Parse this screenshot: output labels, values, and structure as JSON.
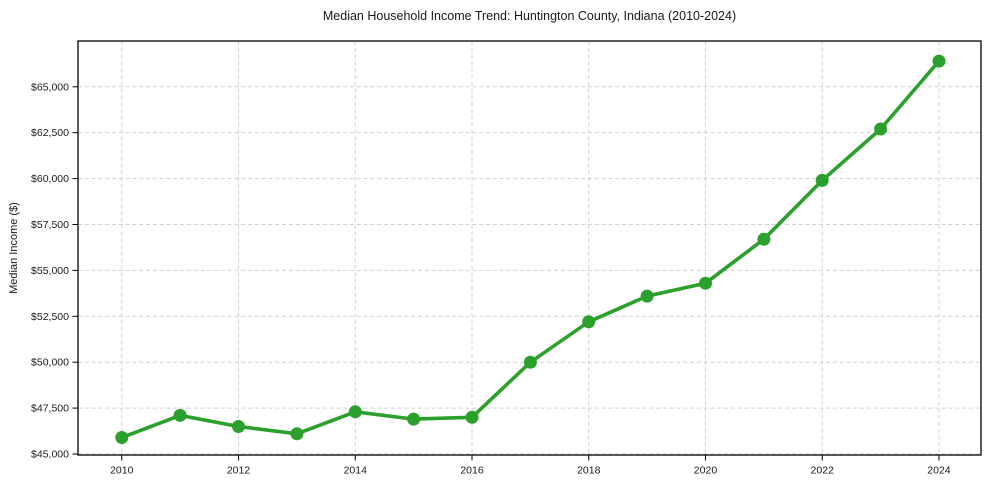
{
  "chart_data": {
    "type": "line",
    "title": "Median Household Income Trend: Huntington County, Indiana (2010-2024)",
    "xlabel": "",
    "ylabel": "Median Income ($)",
    "x": [
      2010,
      2011,
      2012,
      2013,
      2014,
      2015,
      2016,
      2017,
      2018,
      2019,
      2020,
      2021,
      2022,
      2023,
      2024
    ],
    "series": [
      {
        "name": "Median Household Income",
        "values": [
          45900,
          47100,
          46500,
          46100,
          47300,
          46900,
          47000,
          50000,
          52200,
          53600,
          54300,
          56700,
          59900,
          62700,
          66400
        ]
      }
    ],
    "xticks": [
      2010,
      2012,
      2014,
      2016,
      2018,
      2020,
      2022,
      2024
    ],
    "xtick_labels": [
      "2010",
      "2012",
      "2014",
      "2016",
      "2018",
      "2020",
      "2022",
      "2024"
    ],
    "yticks": [
      45000,
      47500,
      50000,
      52500,
      55000,
      57500,
      60000,
      62500,
      65000
    ],
    "ytick_labels": [
      "$45,000",
      "$47,500",
      "$50,000",
      "$52,500",
      "$55,000",
      "$57,500",
      "$60,000",
      "$62,500",
      "$65,000"
    ],
    "xlim": [
      2009.25,
      2024.72
    ],
    "ylim": [
      44945,
      67495
    ],
    "grid": true,
    "legend": "none",
    "line_color": "#2ca02c",
    "marker": "circle",
    "marker_radius": 6.5,
    "grid_color": "#d2d2d2",
    "axis_color": "#000000",
    "background_color": "#ffffff",
    "text_color": "#1a1a1a"
  }
}
